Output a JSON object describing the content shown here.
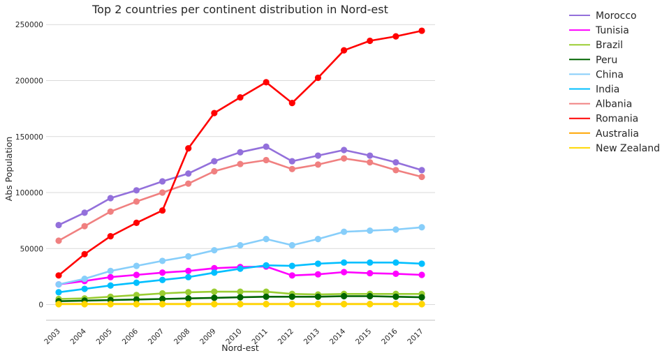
{
  "chart_data": {
    "type": "line",
    "title": "Top 2 countries per continent distribution in Nord-est",
    "xlabel": "Nord-est",
    "ylabel": "Abs Population",
    "x": [
      "2003",
      "2004",
      "2005",
      "2006",
      "2007",
      "2008",
      "2009",
      "2010",
      "2011",
      "2012",
      "2013",
      "2014",
      "2015",
      "2016",
      "2017"
    ],
    "ylim": [
      -14000,
      257000
    ],
    "yticks": [
      0,
      50000,
      100000,
      150000,
      200000,
      250000
    ],
    "ytick_labels": [
      "0",
      "50000",
      "100000",
      "150000",
      "200000",
      "250000"
    ],
    "grid": "horizontal",
    "legend_position": "outside-right",
    "series": [
      {
        "name": "Morocco",
        "color": "#9370db",
        "values": [
          71000,
          82000,
          95000,
          102000,
          110000,
          117000,
          128000,
          136000,
          141000,
          128000,
          133000,
          138000,
          133000,
          127000,
          120000
        ]
      },
      {
        "name": "Tunisia",
        "color": "#ff00ff",
        "values": [
          18000,
          21000,
          24500,
          26500,
          28500,
          30000,
          32500,
          33500,
          34000,
          26000,
          27000,
          29000,
          28000,
          27500,
          26500
        ]
      },
      {
        "name": "Brazil",
        "color": "#9acd32",
        "values": [
          5000,
          5500,
          7000,
          8500,
          10000,
          11000,
          11500,
          11500,
          11500,
          9500,
          9000,
          9500,
          9500,
          9500,
          9500
        ]
      },
      {
        "name": "Peru",
        "color": "#006400",
        "values": [
          3000,
          3500,
          4000,
          4500,
          5000,
          5500,
          6000,
          6500,
          7000,
          7000,
          7000,
          7500,
          7500,
          7000,
          6500
        ]
      },
      {
        "name": "China",
        "color": "#87cefa",
        "values": [
          18000,
          23000,
          30000,
          34500,
          39000,
          43000,
          48500,
          53000,
          58500,
          53000,
          58500,
          65000,
          66000,
          67000,
          69000
        ]
      },
      {
        "name": "India",
        "color": "#00bfff",
        "values": [
          11000,
          14000,
          17000,
          19500,
          22000,
          24500,
          28500,
          32000,
          35000,
          34500,
          36500,
          37500,
          37500,
          37500,
          36500
        ]
      },
      {
        "name": "Albania",
        "color": "#f08080",
        "values": [
          57000,
          70000,
          83000,
          92000,
          100000,
          108000,
          119000,
          125500,
          129000,
          121000,
          125000,
          130500,
          127000,
          120000,
          114000
        ]
      },
      {
        "name": "Romania",
        "color": "#ff0000",
        "values": [
          26000,
          45000,
          61000,
          73000,
          84000,
          139500,
          171000,
          185000,
          198500,
          180000,
          202500,
          227000,
          235500,
          239500,
          244500
        ]
      },
      {
        "name": "Australia",
        "color": "#ffa500",
        "values": [
          500,
          500,
          500,
          500,
          500,
          500,
          500,
          500,
          500,
          500,
          500,
          500,
          500,
          500,
          500
        ]
      },
      {
        "name": "New Zealand",
        "color": "#ffd700",
        "values": [
          300,
          300,
          300,
          300,
          300,
          300,
          300,
          300,
          300,
          300,
          300,
          300,
          300,
          300,
          300
        ]
      }
    ]
  }
}
